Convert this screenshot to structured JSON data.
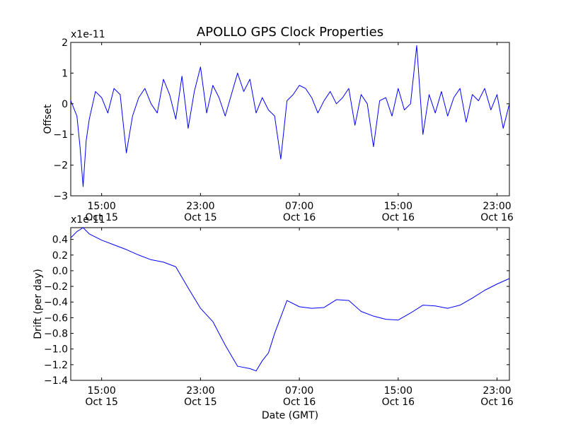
{
  "figure": {
    "title": "APOLLO GPS Clock Properties"
  },
  "colors": {
    "series": "#0000ff",
    "axes": "#000000",
    "background": "#ffffff"
  },
  "chart_data": [
    {
      "type": "line",
      "title": "APOLLO GPS Clock Properties",
      "xlabel": "",
      "ylabel": "Offset",
      "scale_label": "x1e-11",
      "grid": false,
      "x_axis_type": "datetime",
      "xlim": [
        "2013-10-15T12:30",
        "2013-10-17T00:00"
      ],
      "ylim": [
        -3,
        2
      ],
      "x_ticks": [
        {
          "x": "2013-10-15T15:00",
          "label_time": "15:00",
          "label_date": "Oct 15"
        },
        {
          "x": "2013-10-15T23:00",
          "label_time": "23:00",
          "label_date": "Oct 15"
        },
        {
          "x": "2013-10-16T07:00",
          "label_time": "07:00",
          "label_date": "Oct 16"
        },
        {
          "x": "2013-10-16T15:00",
          "label_time": "15:00",
          "label_date": "Oct 16"
        },
        {
          "x": "2013-10-16T23:00",
          "label_time": "23:00",
          "label_date": "Oct 16"
        }
      ],
      "y_ticks": [
        {
          "y": 2,
          "label": "2"
        },
        {
          "y": 1,
          "label": "1"
        },
        {
          "y": 0,
          "label": "0"
        },
        {
          "y": -1,
          "label": "−1"
        },
        {
          "y": -2,
          "label": "−2"
        },
        {
          "y": -3,
          "label": "−3"
        }
      ],
      "series": [
        {
          "color": "#0000ff",
          "x": [
            "2013-10-15T12:30",
            "2013-10-15T13:00",
            "2013-10-15T13:15",
            "2013-10-15T13:30",
            "2013-10-15T13:45",
            "2013-10-15T14:00",
            "2013-10-15T14:30",
            "2013-10-15T15:00",
            "2013-10-15T15:30",
            "2013-10-15T16:00",
            "2013-10-15T16:30",
            "2013-10-15T17:00",
            "2013-10-15T17:30",
            "2013-10-15T18:00",
            "2013-10-15T18:30",
            "2013-10-15T19:00",
            "2013-10-15T19:30",
            "2013-10-15T20:00",
            "2013-10-15T20:30",
            "2013-10-15T21:00",
            "2013-10-15T21:30",
            "2013-10-15T22:00",
            "2013-10-15T22:30",
            "2013-10-15T23:00",
            "2013-10-15T23:30",
            "2013-10-16T00:00",
            "2013-10-16T00:30",
            "2013-10-16T01:00",
            "2013-10-16T01:30",
            "2013-10-16T02:00",
            "2013-10-16T02:30",
            "2013-10-16T03:00",
            "2013-10-16T03:30",
            "2013-10-16T04:00",
            "2013-10-16T04:30",
            "2013-10-16T05:00",
            "2013-10-16T05:30",
            "2013-10-16T06:00",
            "2013-10-16T06:30",
            "2013-10-16T07:00",
            "2013-10-16T07:30",
            "2013-10-16T08:00",
            "2013-10-16T08:30",
            "2013-10-16T09:00",
            "2013-10-16T09:30",
            "2013-10-16T10:00",
            "2013-10-16T10:30",
            "2013-10-16T11:00",
            "2013-10-16T11:30",
            "2013-10-16T12:00",
            "2013-10-16T12:30",
            "2013-10-16T13:00",
            "2013-10-16T13:30",
            "2013-10-16T14:00",
            "2013-10-16T14:30",
            "2013-10-16T15:00",
            "2013-10-16T15:30",
            "2013-10-16T16:00",
            "2013-10-16T16:30",
            "2013-10-16T17:00",
            "2013-10-16T17:30",
            "2013-10-16T18:00",
            "2013-10-16T18:30",
            "2013-10-16T19:00",
            "2013-10-16T19:30",
            "2013-10-16T20:00",
            "2013-10-16T20:30",
            "2013-10-16T21:00",
            "2013-10-16T21:30",
            "2013-10-16T22:00",
            "2013-10-16T22:30",
            "2013-10-16T23:00",
            "2013-10-16T23:30",
            "2013-10-17T00:00"
          ],
          "values": [
            0.1,
            -0.4,
            -1.4,
            -2.7,
            -1.2,
            -0.5,
            0.4,
            0.2,
            -0.3,
            0.5,
            0.3,
            -1.6,
            -0.4,
            0.2,
            0.5,
            0.0,
            -0.3,
            0.8,
            0.3,
            -0.5,
            0.9,
            -0.8,
            0.4,
            1.2,
            -0.3,
            0.6,
            0.2,
            -0.4,
            0.3,
            1.0,
            0.4,
            0.8,
            -0.3,
            0.2,
            -0.2,
            -0.4,
            -1.8,
            0.1,
            0.3,
            0.6,
            0.5,
            0.2,
            -0.3,
            0.1,
            0.4,
            0.0,
            0.2,
            0.5,
            -0.7,
            0.3,
            0.0,
            -1.4,
            0.1,
            0.2,
            -0.4,
            0.5,
            -0.2,
            0.0,
            1.9,
            -1.0,
            0.3,
            -0.3,
            0.4,
            -0.4,
            0.2,
            0.5,
            -0.6,
            0.3,
            0.1,
            0.5,
            -0.2,
            0.3,
            -0.8,
            0.0
          ]
        }
      ]
    },
    {
      "type": "line",
      "title": "",
      "xlabel": "Date (GMT)",
      "ylabel": "Drift (per day)",
      "scale_label": "x1e-11",
      "grid": false,
      "x_axis_type": "datetime",
      "xlim": [
        "2013-10-15T12:30",
        "2013-10-17T00:00"
      ],
      "ylim": [
        -1.4,
        0.55
      ],
      "x_ticks": [
        {
          "x": "2013-10-15T15:00",
          "label_time": "15:00",
          "label_date": "Oct 15"
        },
        {
          "x": "2013-10-15T23:00",
          "label_time": "23:00",
          "label_date": "Oct 15"
        },
        {
          "x": "2013-10-16T07:00",
          "label_time": "07:00",
          "label_date": "Oct 16"
        },
        {
          "x": "2013-10-16T15:00",
          "label_time": "15:00",
          "label_date": "Oct 16"
        },
        {
          "x": "2013-10-16T23:00",
          "label_time": "23:00",
          "label_date": "Oct 16"
        }
      ],
      "y_ticks": [
        {
          "y": 0.4,
          "label": "0.4"
        },
        {
          "y": 0.2,
          "label": "0.2"
        },
        {
          "y": 0.0,
          "label": "0.0"
        },
        {
          "y": -0.2,
          "label": "−0.2"
        },
        {
          "y": -0.4,
          "label": "−0.4"
        },
        {
          "y": -0.6,
          "label": "−0.6"
        },
        {
          "y": -0.8,
          "label": "−0.8"
        },
        {
          "y": -1.0,
          "label": "−1.0"
        },
        {
          "y": -1.2,
          "label": "−1.2"
        },
        {
          "y": -1.4,
          "label": "−1.4"
        }
      ],
      "series": [
        {
          "color": "#0000ff",
          "x": [
            "2013-10-15T12:30",
            "2013-10-15T13:00",
            "2013-10-15T13:30",
            "2013-10-15T14:00",
            "2013-10-15T15:00",
            "2013-10-15T16:00",
            "2013-10-15T17:00",
            "2013-10-15T18:00",
            "2013-10-15T19:00",
            "2013-10-15T20:00",
            "2013-10-15T21:00",
            "2013-10-15T22:00",
            "2013-10-15T23:00",
            "2013-10-16T00:00",
            "2013-10-16T01:00",
            "2013-10-16T02:00",
            "2013-10-16T03:00",
            "2013-10-16T03:30",
            "2013-10-16T04:00",
            "2013-10-16T04:30",
            "2013-10-16T05:00",
            "2013-10-16T06:00",
            "2013-10-16T07:00",
            "2013-10-16T08:00",
            "2013-10-16T09:00",
            "2013-10-16T10:00",
            "2013-10-16T11:00",
            "2013-10-16T12:00",
            "2013-10-16T13:00",
            "2013-10-16T14:00",
            "2013-10-16T15:00",
            "2013-10-16T16:00",
            "2013-10-16T17:00",
            "2013-10-16T18:00",
            "2013-10-16T19:00",
            "2013-10-16T20:00",
            "2013-10-16T21:00",
            "2013-10-16T22:00",
            "2013-10-16T23:00",
            "2013-10-17T00:00"
          ],
          "values": [
            0.42,
            0.5,
            0.55,
            0.47,
            0.39,
            0.33,
            0.27,
            0.2,
            0.14,
            0.11,
            0.05,
            -0.22,
            -0.48,
            -0.65,
            -0.95,
            -1.22,
            -1.25,
            -1.28,
            -1.15,
            -1.05,
            -0.8,
            -0.38,
            -0.46,
            -0.48,
            -0.47,
            -0.37,
            -0.38,
            -0.52,
            -0.58,
            -0.62,
            -0.63,
            -0.54,
            -0.44,
            -0.45,
            -0.48,
            -0.44,
            -0.35,
            -0.25,
            -0.17,
            -0.1
          ]
        }
      ]
    }
  ]
}
